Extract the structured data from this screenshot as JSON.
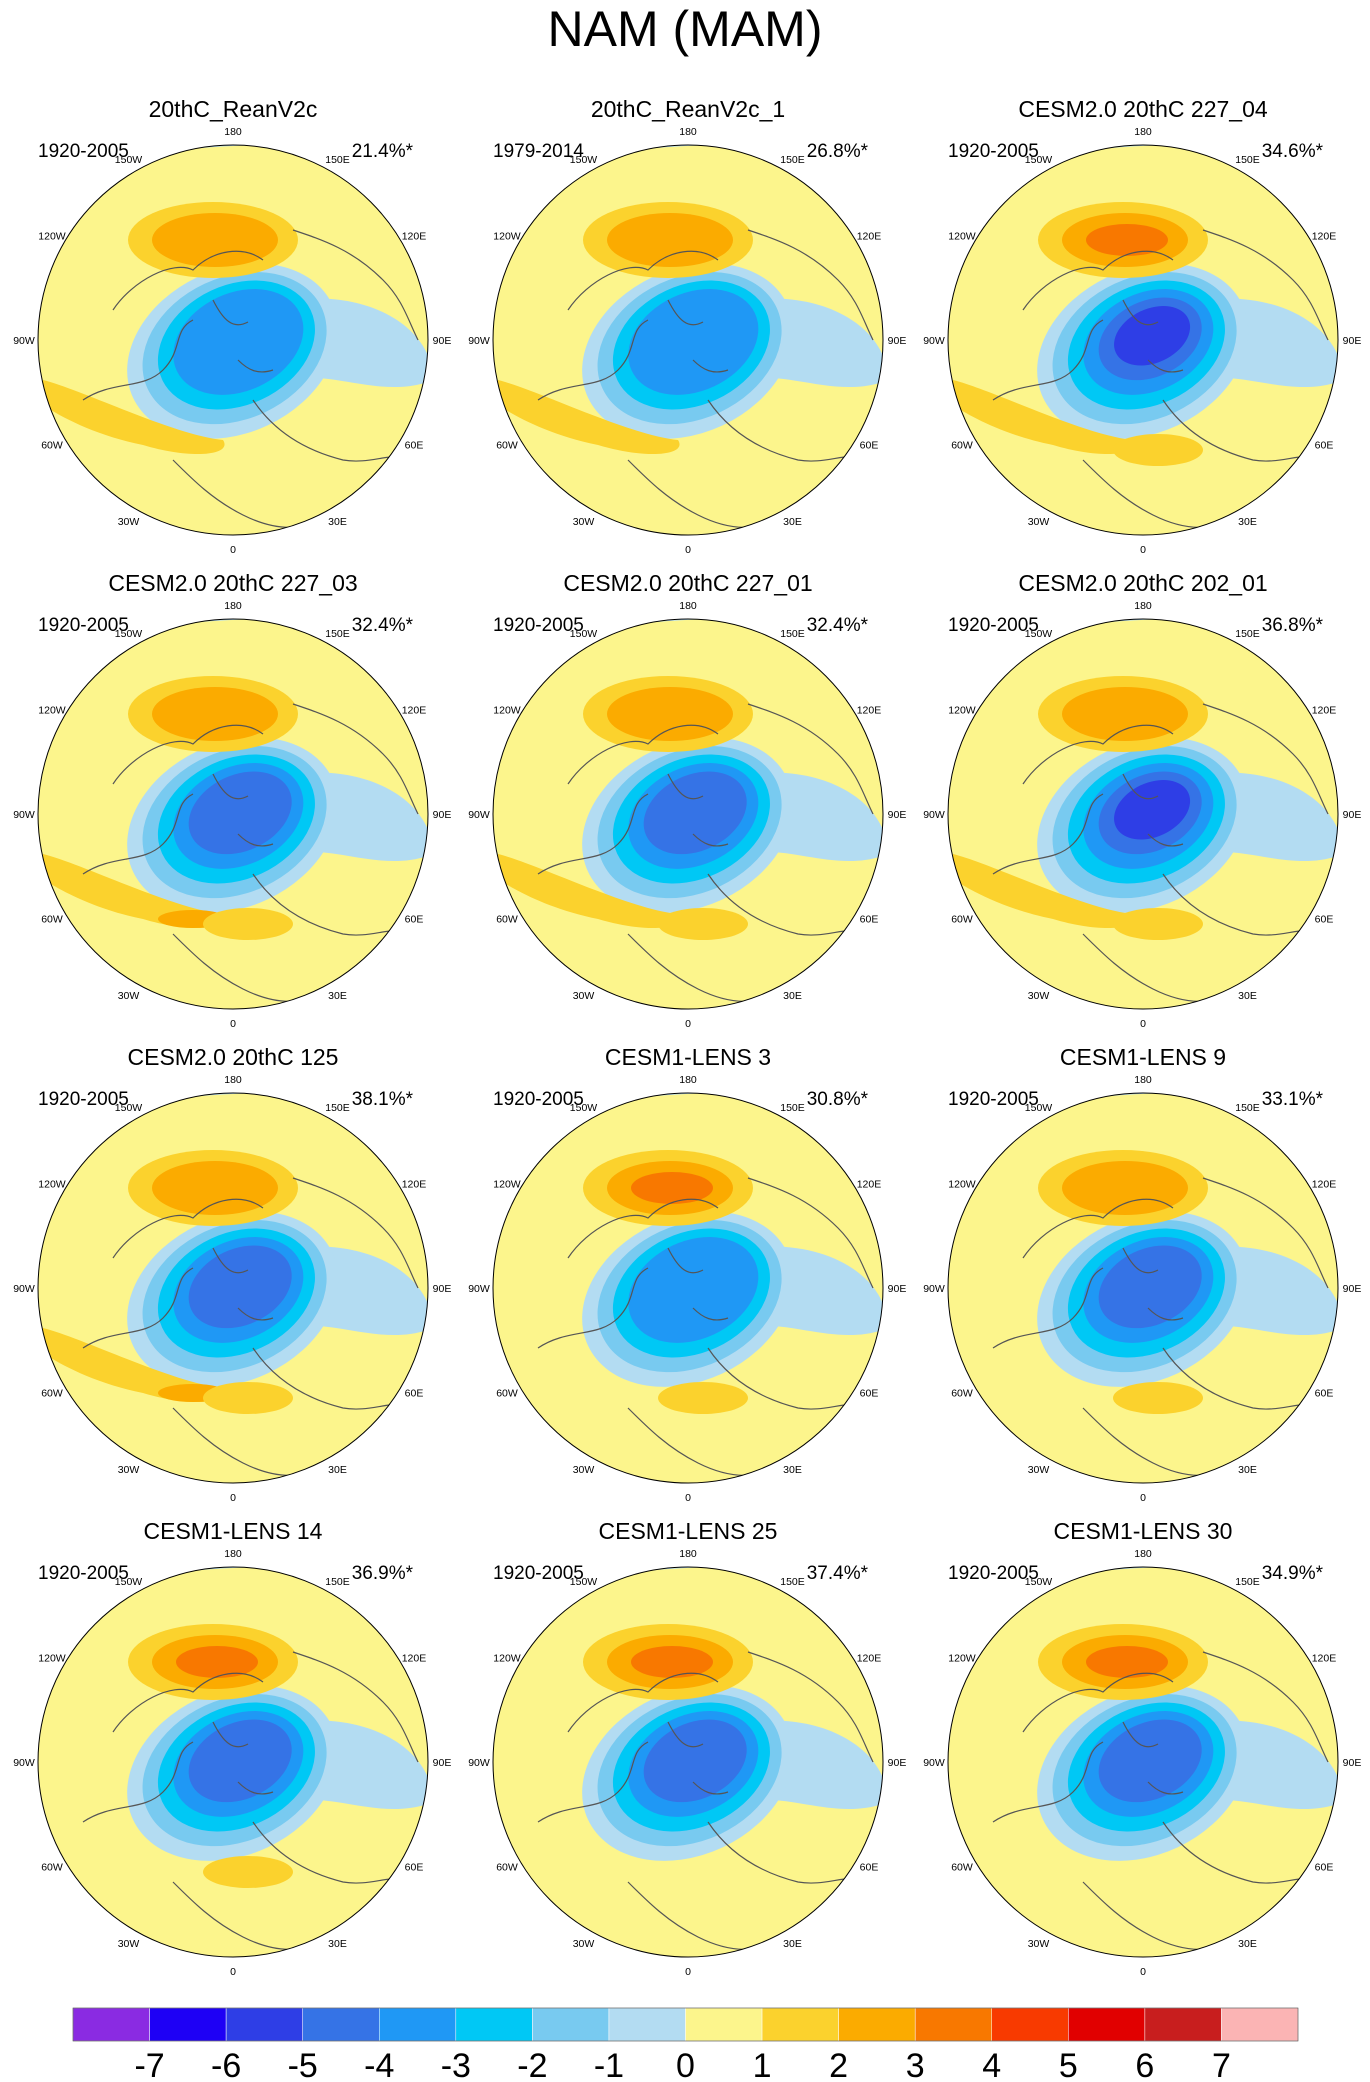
{
  "chart_data": {
    "type": "polar contour map",
    "title": "NAM (MAM)",
    "longitude_labels": [
      "180",
      "150E",
      "120E",
      "90E",
      "60E",
      "30E",
      "0",
      "30W",
      "60W",
      "90W",
      "120W",
      "150W"
    ],
    "panels": [
      {
        "title": "20thC_ReanV2c",
        "period": "1920-2005",
        "variance": "21.4%*",
        "features": {
          "min": -4,
          "pacific_max": 2,
          "atlantic_max": 2,
          "europe_max": 1
        }
      },
      {
        "title": "20thC_ReanV2c_1",
        "period": "1979-2014",
        "variance": "26.8%*",
        "features": {
          "min": -4,
          "pacific_max": 2,
          "atlantic_max": 2,
          "europe_max": 1
        }
      },
      {
        "title": "CESM2.0 20thC 227_04",
        "period": "1920-2005",
        "variance": "34.6%*",
        "features": {
          "min": -6,
          "pacific_max": 3,
          "atlantic_max": 2,
          "europe_max": 2
        }
      },
      {
        "title": "CESM2.0 20thC 227_03",
        "period": "1920-2005",
        "variance": "32.4%*",
        "features": {
          "min": -5,
          "pacific_max": 2,
          "atlantic_max": 3,
          "europe_max": 2
        }
      },
      {
        "title": "CESM2.0 20thC 227_01",
        "period": "1920-2005",
        "variance": "32.4%*",
        "features": {
          "min": -5,
          "pacific_max": 2,
          "atlantic_max": 2,
          "europe_max": 2
        }
      },
      {
        "title": "CESM2.0 20thC 202_01",
        "period": "1920-2005",
        "variance": "36.8%*",
        "features": {
          "min": -6,
          "pacific_max": 2,
          "atlantic_max": 2,
          "europe_max": 2
        }
      },
      {
        "title": "CESM2.0 20thC 125",
        "period": "1920-2005",
        "variance": "38.1%*",
        "features": {
          "min": -5,
          "pacific_max": 2,
          "atlantic_max": 3,
          "europe_max": 2
        }
      },
      {
        "title": "CESM1-LENS 3",
        "period": "1920-2005",
        "variance": "30.8%*",
        "features": {
          "min": -4,
          "pacific_max": 3,
          "atlantic_max": 1,
          "europe_max": 2
        }
      },
      {
        "title": "CESM1-LENS 9",
        "period": "1920-2005",
        "variance": "33.1%*",
        "features": {
          "min": -5,
          "pacific_max": 2,
          "atlantic_max": 1,
          "europe_max": 2
        }
      },
      {
        "title": "CESM1-LENS 14",
        "period": "1920-2005",
        "variance": "36.9%*",
        "features": {
          "min": -5,
          "pacific_max": 3,
          "atlantic_max": 1,
          "europe_max": 2
        }
      },
      {
        "title": "CESM1-LENS 25",
        "period": "1920-2005",
        "variance": "37.4%*",
        "features": {
          "min": -5,
          "pacific_max": 3,
          "atlantic_max": 1,
          "europe_max": 1
        }
      },
      {
        "title": "CESM1-LENS 30",
        "period": "1920-2005",
        "variance": "34.9%*",
        "features": {
          "min": -5,
          "pacific_max": 3,
          "atlantic_max": 1,
          "europe_max": 1
        }
      }
    ],
    "colorbar": {
      "labels": [
        "-7",
        "-6",
        "-5",
        "-4",
        "-3",
        "-2",
        "-1",
        "0",
        "1",
        "2",
        "3",
        "4",
        "5",
        "6",
        "7"
      ],
      "colors": [
        "#8a2be2",
        "#1e00f5",
        "#2e3ee6",
        "#3573e6",
        "#1f98f5",
        "#00c8f5",
        "#78caf0",
        "#b3dcf2",
        "#fcf58c",
        "#fbd22d",
        "#fbab00",
        "#f87800",
        "#f83a00",
        "#e10000",
        "#c81e1e",
        "#fbb4b4"
      ]
    }
  }
}
